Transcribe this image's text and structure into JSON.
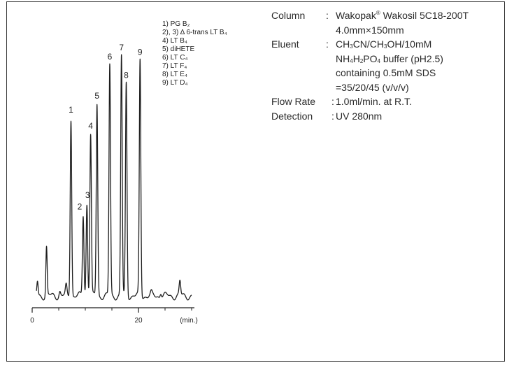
{
  "chart_data": {
    "type": "line",
    "xlabel": "(min.)",
    "xlim": [
      0,
      30
    ],
    "x_ticks": [
      "0",
      "20"
    ],
    "y_axis_shown": false,
    "grid": false,
    "legend_position": "top-right",
    "legend": [
      {
        "text": "1) PG B₂"
      },
      {
        "text": "2), 3) Δ 6-trans LT B₄"
      },
      {
        "text": "4) LT B₄"
      },
      {
        "text": "5) diHETE"
      },
      {
        "text": "6) LT C₄"
      },
      {
        "text": "7) LT F₄"
      },
      {
        "text": "8) LT E₄"
      },
      {
        "text": "9) LT D₄"
      }
    ],
    "peaks": [
      {
        "label": "1",
        "t": 7.3,
        "height": 0.77
      },
      {
        "label": "2",
        "t": 9.6,
        "height": 0.35
      },
      {
        "label": "3",
        "t": 10.3,
        "height": 0.4
      },
      {
        "label": "4",
        "t": 11.0,
        "height": 0.7
      },
      {
        "label": "5",
        "t": 12.2,
        "height": 0.83
      },
      {
        "label": "6",
        "t": 14.6,
        "height": 1.0
      },
      {
        "label": "7",
        "t": 16.8,
        "height": 1.04
      },
      {
        "label": "8",
        "t": 17.7,
        "height": 0.92
      },
      {
        "label": "9",
        "t": 20.3,
        "height": 1.02
      }
    ],
    "unlabeled_peaks": [
      {
        "t": 1.0,
        "height": 0.06
      },
      {
        "t": 2.7,
        "height": 0.21
      },
      {
        "t": 5.2,
        "height": 0.02
      },
      {
        "t": 6.4,
        "height": 0.04
      },
      {
        "t": 22.4,
        "height": 0.01
      },
      {
        "t": 24.2,
        "height": 0.02
      },
      {
        "t": 27.8,
        "height": 0.06
      }
    ]
  },
  "conditions": {
    "column_label": "Column",
    "column_value_1": "Wakopak",
    "column_value_reg": "®",
    "column_value_2": " Wakosil 5C18-200T",
    "column_dims": "4.0mm×150mm",
    "eluent_label": "Eluent",
    "eluent_1a": "CH",
    "eluent_1b": "3",
    "eluent_1c": "CN/CH",
    "eluent_1d": "3",
    "eluent_1e": "OH/10mM",
    "eluent_2a": "NH",
    "eluent_2b": "4",
    "eluent_2c": "H",
    "eluent_2d": "2",
    "eluent_2e": "PO",
    "eluent_2f": "4",
    "eluent_2g": " buffer (pH2.5)",
    "eluent_3": "containing 0.5mM SDS",
    "eluent_4": "=35/20/45 (v/v/v)",
    "flow_label": "Flow Rate",
    "flow_value": "1.0ml/min. at R.T.",
    "detection_label": "Detection",
    "detection_value": "UV 280nm",
    "colon": ":"
  }
}
